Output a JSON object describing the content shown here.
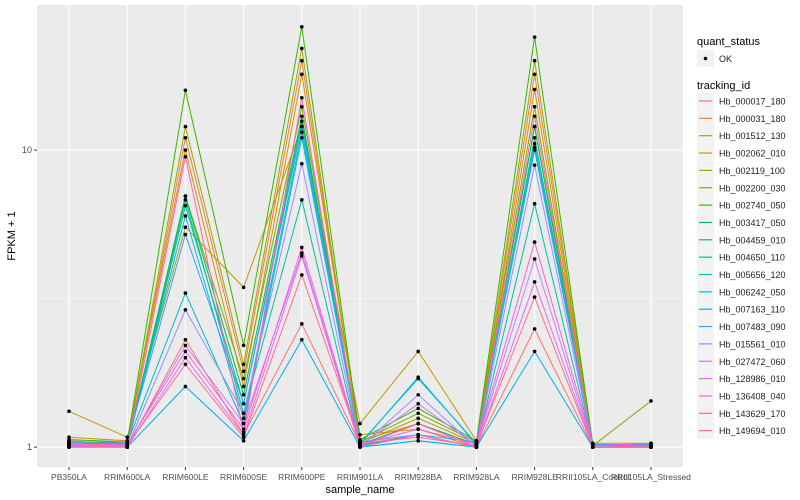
{
  "chart_data": {
    "type": "line",
    "xlabel": "sample_name",
    "ylabel": "FPKM + 1",
    "y_scale": "log10",
    "ylim": [
      0.857,
      30.8
    ],
    "y_ticks": [
      1,
      10
    ],
    "y_tick_labels": [
      "1",
      "10"
    ],
    "grid": true,
    "legend_placement": "right",
    "categories": [
      "PB350LA",
      "RRIM600LA",
      "RRIM600LE",
      "RRIM600SE",
      "RRIM600PE",
      "RRIM901LA",
      "RRIM928BA",
      "RRIM928LA",
      "RRIM928LE",
      "RRII105LA_Control",
      "RRII105LA_Stressed"
    ],
    "point_legend": {
      "title": "quant_status",
      "entries": [
        "OK"
      ]
    },
    "line_legend_title": "tracking_id",
    "series": [
      {
        "name": "Hb_000017_180",
        "color": "#F8766D",
        "values": [
          1.02,
          1.0,
          2.3,
          1.1,
          2.6,
          1.02,
          1.1,
          1.0,
          2.5,
          1.0,
          1.0
        ]
      },
      {
        "name": "Hb_000031_180",
        "color": "#EA8331",
        "values": [
          1.05,
          1.02,
          11,
          1.8,
          20,
          1.05,
          1.2,
          1.02,
          18,
          1.02,
          1.01
        ]
      },
      {
        "name": "Hb_001512_130",
        "color": "#D89000",
        "values": [
          1.08,
          1.05,
          10,
          1.6,
          18,
          1.1,
          1.15,
          1.0,
          16,
          1.01,
          1.02
        ]
      },
      {
        "name": "Hb_002062_010",
        "color": "#C09B00",
        "values": [
          1.32,
          1.08,
          5.5,
          3.45,
          12,
          1.2,
          2.1,
          1.05,
          12,
          1.03,
          1.03
        ]
      },
      {
        "name": "Hb_002119_100",
        "color": "#A3A500",
        "values": [
          1.04,
          1.03,
          12,
          1.9,
          22,
          1.03,
          1.25,
          1.03,
          20,
          1.02,
          1.02
        ]
      },
      {
        "name": "Hb_002200_030",
        "color": "#7CAE00",
        "values": [
          1.03,
          1.02,
          7,
          1.7,
          14,
          1.04,
          1.3,
          1.04,
          14,
          1.01,
          1.43
        ]
      },
      {
        "name": "Hb_002740_050",
        "color": "#39B600",
        "values": [
          1.06,
          1.04,
          15.9,
          2.2,
          26,
          1.06,
          1.35,
          1.05,
          24,
          1.02,
          1.02
        ]
      },
      {
        "name": "Hb_003417_050",
        "color": "#00BB4E",
        "values": [
          1.02,
          1.01,
          7,
          1.5,
          13,
          1.02,
          1.2,
          1.02,
          12,
          1.0,
          1.01
        ]
      },
      {
        "name": "Hb_004459_010",
        "color": "#00BF7D",
        "values": [
          1.01,
          1.0,
          6.5,
          1.4,
          12.5,
          1.01,
          1.1,
          1.0,
          11,
          1.0,
          1.0
        ]
      },
      {
        "name": "Hb_004650_110",
        "color": "#00C1A3",
        "values": [
          1.0,
          1.0,
          6.8,
          1.3,
          6.8,
          1.0,
          1.05,
          1.0,
          6.6,
          1.0,
          1.0
        ]
      },
      {
        "name": "Hb_005656_120",
        "color": "#00BFC4",
        "values": [
          1.03,
          1.03,
          3.3,
          1.2,
          11,
          1.03,
          1.7,
          1.03,
          10,
          1.02,
          1.02
        ]
      },
      {
        "name": "Hb_006242_050",
        "color": "#00BAE0",
        "values": [
          1.02,
          1.02,
          6,
          1.25,
          11.5,
          1.02,
          1.72,
          1.02,
          10.5,
          1.01,
          1.01
        ]
      },
      {
        "name": "Hb_007163_110",
        "color": "#00B0F6",
        "values": [
          1.0,
          1.0,
          1.6,
          1.05,
          2.3,
          1.0,
          1.05,
          1.0,
          2.1,
          1.0,
          1.0
        ]
      },
      {
        "name": "Hb_007483_090",
        "color": "#35A2FF",
        "values": [
          1.04,
          1.04,
          5.2,
          1.4,
          12,
          1.04,
          1.1,
          1.04,
          10.2,
          1.02,
          1.02
        ]
      },
      {
        "name": "Hb_015561_010",
        "color": "#9590FF",
        "values": [
          1.02,
          1.0,
          2.9,
          1.3,
          9,
          1.0,
          1.5,
          1.0,
          8.9,
          1.0,
          1.0
        ]
      },
      {
        "name": "Hb_027472_060",
        "color": "#C77CFF",
        "values": [
          1.01,
          1.01,
          2.2,
          1.2,
          4.5,
          1.01,
          1.4,
          1.01,
          4.3,
          1.0,
          1.0
        ]
      },
      {
        "name": "Hb_128986_010",
        "color": "#E76BF3",
        "values": [
          1.0,
          1.0,
          2.0,
          1.1,
          4.4,
          1.0,
          1.1,
          1.0,
          3.6,
          1.0,
          1.0
        ]
      },
      {
        "name": "Hb_136408_040",
        "color": "#FA62DB",
        "values": [
          1.02,
          1.02,
          2.1,
          1.15,
          4.7,
          1.02,
          1.15,
          1.02,
          4.9,
          1.01,
          1.03
        ]
      },
      {
        "name": "Hb_143629_170",
        "color": "#FF62BC",
        "values": [
          1.01,
          1.0,
          9.5,
          1.12,
          15,
          1.01,
          1.2,
          1.0,
          13,
          1.0,
          1.01
        ]
      },
      {
        "name": "Hb_149694_010",
        "color": "#FF6C91",
        "values": [
          1.03,
          1.01,
          1.9,
          1.08,
          3.8,
          1.03,
          1.08,
          1.01,
          3.2,
          1.0,
          1.0
        ]
      }
    ]
  }
}
